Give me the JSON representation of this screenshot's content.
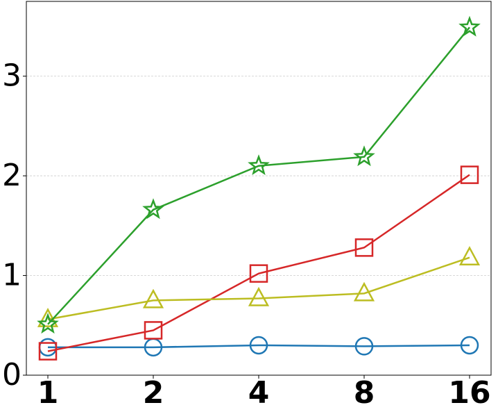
{
  "chart_data": {
    "type": "line",
    "categories": [
      "1",
      "2",
      "4",
      "8",
      "16"
    ],
    "series": [
      {
        "color": "#1f77b4",
        "marker": "circle",
        "values": [
          0.28,
          0.28,
          0.3,
          0.29,
          0.3
        ]
      },
      {
        "color": "#d62728",
        "marker": "square",
        "values": [
          0.24,
          0.45,
          1.02,
          1.28,
          2.01
        ]
      },
      {
        "color": "#bcbd22",
        "marker": "triangle",
        "values": [
          0.56,
          0.75,
          0.77,
          0.82,
          1.18
        ]
      },
      {
        "color": "#2ca02c",
        "marker": "star",
        "values": [
          0.51,
          1.66,
          2.1,
          2.19,
          3.49
        ]
      }
    ],
    "ylim": [
      0,
      3.75
    ],
    "yticks": [
      0,
      1,
      2,
      3
    ],
    "grid": true
  }
}
